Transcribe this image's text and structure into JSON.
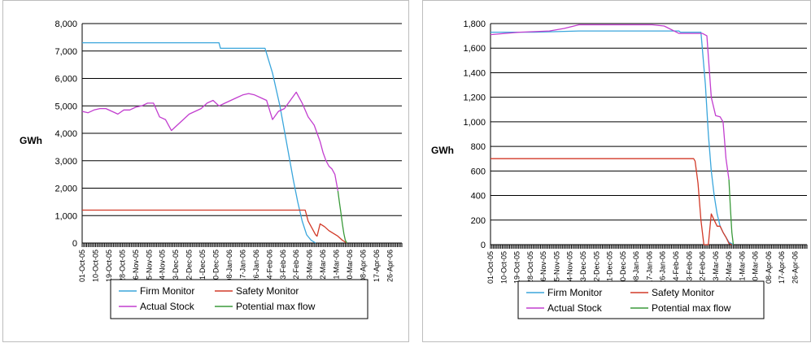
{
  "chart_data": [
    {
      "type": "line",
      "ylabel": "GWh",
      "xlabel": "",
      "ylim": [
        0,
        8000
      ],
      "yticks": [
        0,
        1000,
        2000,
        3000,
        4000,
        5000,
        6000,
        7000,
        8000
      ],
      "ytick_labels": [
        "0",
        "1,000",
        "2,000",
        "3,000",
        "4,000",
        "5,000",
        "6,000",
        "7,000",
        "8,000"
      ],
      "xlim": [
        0,
        215
      ],
      "x_tick_labels": [
        "01-Oct-05",
        "10-Oct-05",
        "19-Oct-05",
        "28-Oct-05",
        "06-Nov-05",
        "15-Nov-05",
        "24-Nov-05",
        "03-Dec-05",
        "12-Dec-05",
        "21-Dec-05",
        "30-Dec-05",
        "08-Jan-06",
        "17-Jan-06",
        "26-Jan-06",
        "04-Feb-06",
        "13-Feb-06",
        "22-Feb-06",
        "03-Mar-06",
        "12-Mar-06",
        "21-Mar-06",
        "30-Mar-06",
        "08-Apr-06",
        "17-Apr-06",
        "26-Apr-06"
      ],
      "grid": true,
      "legend_position": "bottom",
      "series": [
        {
          "name": "Firm Monitor",
          "color": "#3aa6dc",
          "x": [
            0,
            92,
            93,
            123,
            128,
            133,
            136,
            139,
            142,
            145,
            148,
            151,
            154,
            157
          ],
          "y": [
            7300,
            7300,
            7100,
            7100,
            6200,
            5000,
            4100,
            3200,
            2300,
            1500,
            800,
            300,
            100,
            0
          ]
        },
        {
          "name": "Safety Monitor",
          "color": "#d23a28",
          "x": [
            0,
            150,
            152,
            155,
            157,
            158,
            160,
            163,
            166,
            169,
            172,
            175,
            178
          ],
          "y": [
            1200,
            1200,
            800,
            500,
            300,
            250,
            700,
            600,
            450,
            350,
            250,
            100,
            0
          ]
        },
        {
          "name": "Actual Stock",
          "color": "#c23ecf",
          "x": [
            0,
            4,
            8,
            12,
            16,
            20,
            24,
            28,
            32,
            36,
            40,
            44,
            48,
            52,
            56,
            60,
            64,
            68,
            72,
            76,
            80,
            84,
            88,
            92,
            96,
            100,
            104,
            108,
            112,
            116,
            120,
            124,
            128,
            132,
            136,
            140,
            144,
            148,
            152,
            156,
            160,
            162,
            164,
            166,
            168,
            170,
            172
          ],
          "y": [
            4800,
            4750,
            4850,
            4900,
            4900,
            4800,
            4700,
            4850,
            4850,
            4950,
            5000,
            5100,
            5100,
            4600,
            4500,
            4100,
            4300,
            4500,
            4700,
            4800,
            4900,
            5100,
            5200,
            5000,
            5100,
            5200,
            5300,
            5400,
            5450,
            5400,
            5300,
            5200,
            4500,
            4800,
            4900,
            5200,
            5500,
            5100,
            4600,
            4300,
            3700,
            3300,
            3000,
            2800,
            2700,
            2500,
            1900
          ]
        },
        {
          "name": "Potential max flow",
          "color": "#3a9a3a",
          "x": [
            172,
            173,
            174,
            175,
            176,
            177,
            178
          ],
          "y": [
            1900,
            1500,
            1100,
            700,
            350,
            100,
            0
          ]
        }
      ]
    },
    {
      "type": "line",
      "ylabel": "GWh",
      "xlabel": "",
      "ylim": [
        0,
        1800
      ],
      "yticks": [
        0,
        200,
        400,
        600,
        800,
        1000,
        1200,
        1400,
        1600,
        1800
      ],
      "ytick_labels": [
        "0",
        "200",
        "400",
        "600",
        "800",
        "1,000",
        "1,200",
        "1,400",
        "1,600",
        "1,800"
      ],
      "xlim": [
        0,
        215
      ],
      "x_tick_labels": [
        "01-Oct-05",
        "10-Oct-05",
        "19-Oct-05",
        "28-Oct-05",
        "06-Nov-05",
        "15-Nov-05",
        "24-Nov-05",
        "03-Dec-05",
        "12-Dec-05",
        "21-Dec-05",
        "30-Dec-05",
        "08-Jan-06",
        "17-Jan-06",
        "26-Jan-06",
        "04-Feb-06",
        "13-Feb-06",
        "22-Feb-06",
        "03-Mar-06",
        "12-Mar-06",
        "21-Mar-06",
        "30-Mar-06",
        "08-Apr-06",
        "17-Apr-06",
        "26-Apr-06"
      ],
      "grid": true,
      "legend_position": "bottom",
      "series": [
        {
          "name": "Firm Monitor",
          "color": "#3aa6dc",
          "x": [
            0,
            30,
            60,
            90,
            128,
            129,
            143,
            146,
            148,
            150,
            152,
            154,
            156,
            158,
            160,
            162,
            165
          ],
          "y": [
            1730,
            1730,
            1740,
            1740,
            1740,
            1730,
            1730,
            1300,
            900,
            600,
            400,
            250,
            150,
            100,
            60,
            20,
            0
          ]
        },
        {
          "name": "Safety Monitor",
          "color": "#d23a28",
          "x": [
            0,
            138,
            139,
            141,
            143,
            145,
            146,
            147,
            148,
            150,
            152,
            154,
            156,
            158,
            160,
            162,
            164
          ],
          "y": [
            700,
            700,
            680,
            500,
            200,
            0,
            0,
            0,
            0,
            250,
            200,
            150,
            150,
            100,
            60,
            10,
            0
          ]
        },
        {
          "name": "Actual Stock",
          "color": "#c23ecf",
          "x": [
            0,
            20,
            40,
            50,
            60,
            80,
            100,
            110,
            118,
            128,
            140,
            144,
            147,
            150,
            153,
            156,
            158,
            160,
            162
          ],
          "y": [
            1710,
            1730,
            1740,
            1760,
            1790,
            1790,
            1790,
            1790,
            1780,
            1720,
            1720,
            1720,
            1700,
            1200,
            1050,
            1040,
            1000,
            700,
            530
          ]
        },
        {
          "name": "Potential max flow",
          "color": "#3a9a3a",
          "x": [
            162,
            163,
            164,
            165
          ],
          "y": [
            530,
            300,
            100,
            0
          ]
        }
      ]
    }
  ]
}
